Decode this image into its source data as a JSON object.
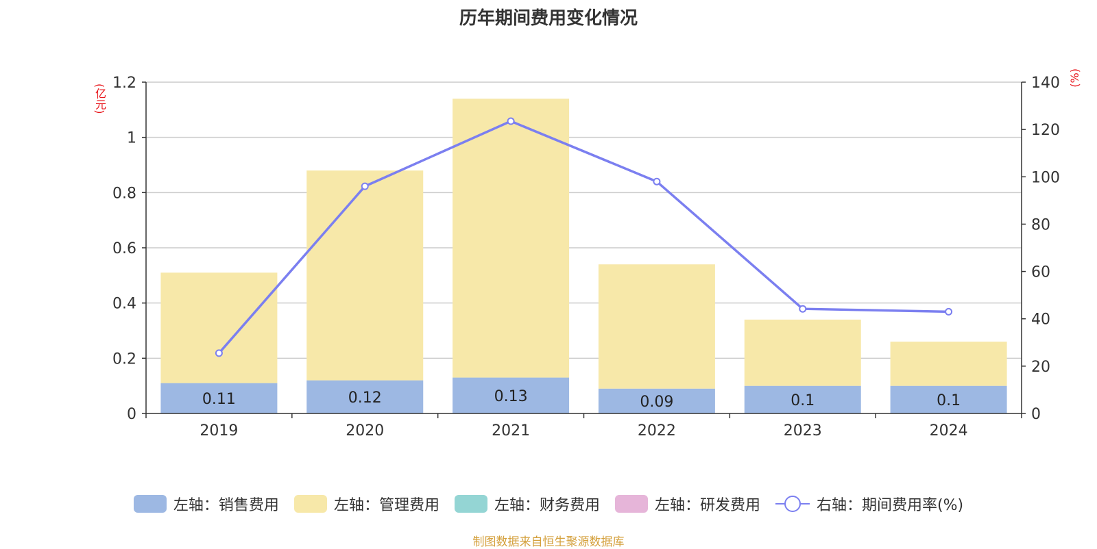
{
  "title": "历年期间费用变化情况",
  "units": {
    "left": "(亿元)",
    "right": "(%)"
  },
  "source": "制图数据来自恒生聚源数据库",
  "colors": {
    "sales": "#9db8e3",
    "admin": "#f7e8a9",
    "finance": "#94d5d4",
    "rnd": "#e6b5d9",
    "rate": "#7b7ff0",
    "grid": "#cccccc",
    "axis": "#333333",
    "unit": "#e8161b"
  },
  "legend": [
    {
      "label": "左轴：销售费用",
      "key": "sales",
      "kind": "bar"
    },
    {
      "label": "左轴：管理费用",
      "key": "admin",
      "kind": "bar"
    },
    {
      "label": "左轴：财务费用",
      "key": "finance",
      "kind": "bar"
    },
    {
      "label": "左轴：研发费用",
      "key": "rnd",
      "kind": "bar"
    },
    {
      "label": "右轴：期间费用率(%)",
      "key": "rate",
      "kind": "line"
    }
  ],
  "chart_data": {
    "type": "bar",
    "stacked": true,
    "categories": [
      "2019",
      "2020",
      "2021",
      "2022",
      "2023",
      "2024"
    ],
    "series": [
      {
        "name": "左轴：销售费用",
        "key": "sales",
        "axis": "left",
        "values": [
          0.11,
          0.12,
          0.13,
          0.09,
          0.1,
          0.1
        ],
        "labels": [
          "0.11",
          "0.12",
          "0.13",
          "0.09",
          "0.1",
          "0.1"
        ]
      },
      {
        "name": "左轴：管理费用",
        "key": "admin",
        "axis": "left",
        "values": [
          0.4,
          0.76,
          1.01,
          0.45,
          0.24,
          0.16
        ]
      },
      {
        "name": "左轴：财务费用",
        "key": "finance",
        "axis": "left",
        "values": [
          0,
          0,
          0,
          0,
          0,
          0
        ]
      },
      {
        "name": "左轴：研发费用",
        "key": "rnd",
        "axis": "left",
        "values": [
          0,
          0,
          0,
          0,
          0,
          0
        ]
      },
      {
        "name": "右轴：期间费用率(%)",
        "key": "rate",
        "axis": "right",
        "type": "line",
        "values": [
          25.5,
          96.0,
          123.5,
          98.0,
          44.2,
          43.0
        ]
      }
    ],
    "y_left": {
      "min": 0,
      "max": 1.2,
      "ticks": [
        "0",
        "0.2",
        "0.4",
        "0.6",
        "0.8",
        "1",
        "1.2"
      ]
    },
    "y_right": {
      "min": 0,
      "max": 140,
      "ticks": [
        "0",
        "20",
        "40",
        "60",
        "80",
        "100",
        "120",
        "140"
      ]
    },
    "grid": true,
    "legend_position": "bottom"
  }
}
